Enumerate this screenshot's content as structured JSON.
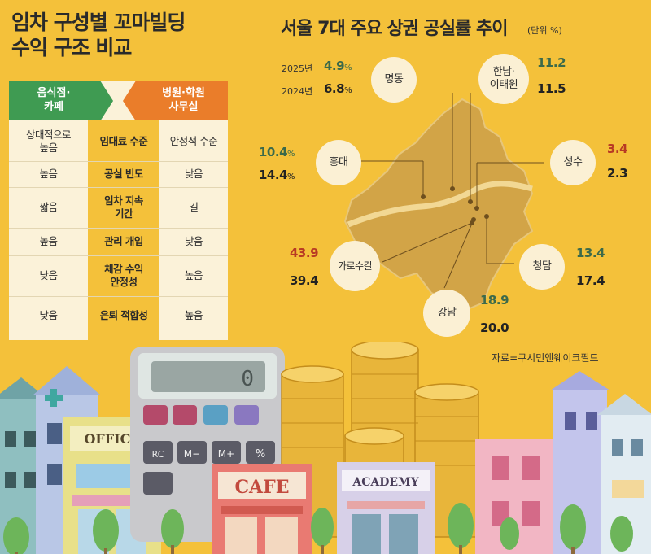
{
  "left": {
    "title_line1": "임차 구성별 꼬마빌딩",
    "title_line2": "수익 구조 비교",
    "header_left_line1": "음식점·",
    "header_left_line2": "카페",
    "header_right_line1": "병원·학원",
    "header_right_line2": "사무실",
    "rows": [
      {
        "left_l1": "상대적으로",
        "left_l2": "높음",
        "mid_l1": "임대료 수준",
        "mid_l2": "",
        "right": "안정적 수준"
      },
      {
        "left_l1": "높음",
        "left_l2": "",
        "mid_l1": "공실 빈도",
        "mid_l2": "",
        "right": "낮음"
      },
      {
        "left_l1": "짧음",
        "left_l2": "",
        "mid_l1": "임차 지속",
        "mid_l2": "기간",
        "right": "길"
      },
      {
        "left_l1": "높음",
        "left_l2": "",
        "mid_l1": "관리 개입",
        "mid_l2": "",
        "right": "낮음"
      },
      {
        "left_l1": "낮음",
        "left_l2": "",
        "mid_l1": "체감 수익",
        "mid_l2": "안정성",
        "right": "높음"
      },
      {
        "left_l1": "낮음",
        "left_l2": "",
        "mid_l1": "은퇴 적합성",
        "mid_l2": "",
        "right": "높음"
      }
    ]
  },
  "right": {
    "title": "서울 7대 주요 상권 공실률 추이",
    "unit": "(단위 %)",
    "year_2025": "2025년",
    "year_2024": "2024년",
    "pct_sign": "%",
    "areas": [
      {
        "name": "명동",
        "v2025": "4.9",
        "v2024": "6.8"
      },
      {
        "name_l1": "한남·",
        "name_l2": "이태원",
        "v2025": "11.2",
        "v2024": "11.5"
      },
      {
        "name": "홍대",
        "v2025": "10.4",
        "v2024": "14.4"
      },
      {
        "name": "성수",
        "v2025": "3.4",
        "v2024": "2.3"
      },
      {
        "name": "가로수길",
        "v2025": "43.9",
        "v2024": "39.4"
      },
      {
        "name": "청담",
        "v2025": "13.4",
        "v2024": "17.4"
      },
      {
        "name": "강남",
        "v2025": "18.9",
        "v2024": "20.0"
      }
    ],
    "source": "자료=쿠시먼앤웨이크필드"
  },
  "illustration": {
    "office_sign": "OFFICE",
    "cafe_sign": "CAFE",
    "academy_sign": "ACADEMY",
    "calc_display": "0",
    "calc_keys": [
      "RC",
      "M−",
      "M+",
      "%"
    ]
  },
  "colors": {
    "background": "#f4c13a",
    "green_tag": "#3f9b52",
    "orange_tag": "#ea7d2a",
    "value_green": "#3c6a4a",
    "value_red": "#b83a24"
  }
}
